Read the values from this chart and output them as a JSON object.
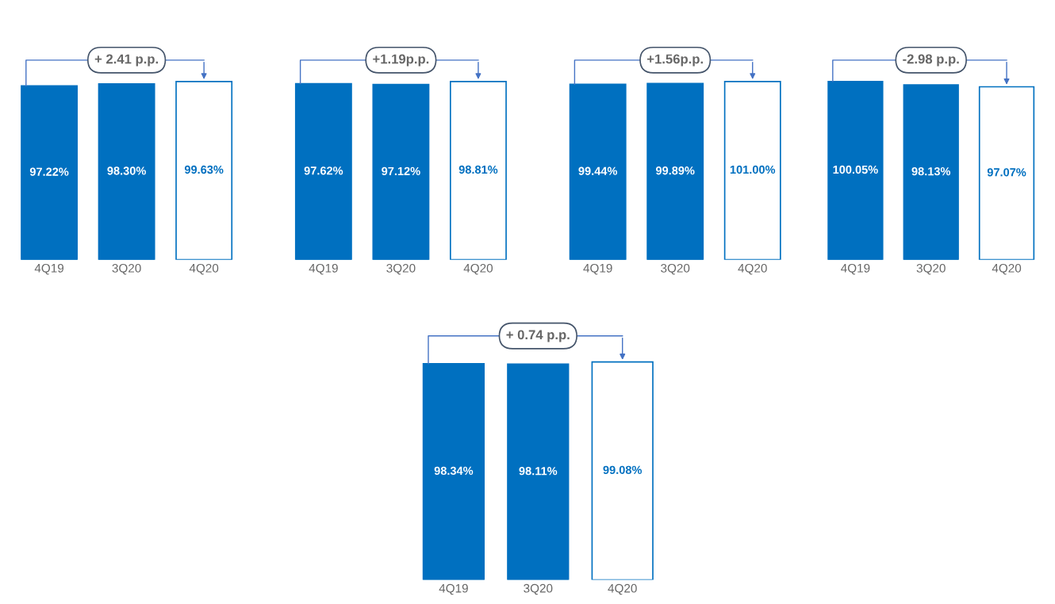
{
  "chart_data": [
    {
      "type": "bar",
      "categories": [
        "4Q19",
        "3Q20",
        "4Q20"
      ],
      "values": [
        97.22,
        98.3,
        99.63
      ],
      "value_labels": [
        "97.22%",
        "98.30%",
        "99.63%"
      ],
      "color": "#0070c0",
      "colors": [
        "#0070c0",
        "#0070c0",
        "#ffffff"
      ],
      "annotations": [
        "+ 2.41 p.p."
      ],
      "tick_labels": "x"
    },
    {
      "type": "bar",
      "categories": [
        "4Q19",
        "3Q20",
        "4Q20"
      ],
      "values": [
        97.62,
        97.12,
        98.81
      ],
      "value_labels": [
        "97.62%",
        "97.12%",
        "98.81%"
      ],
      "color": "#0070c0",
      "colors": [
        "#0070c0",
        "#0070c0",
        "#ffffff"
      ],
      "annotations": [
        "+1.19p.p."
      ],
      "tick_labels": "x"
    },
    {
      "type": "bar",
      "categories": [
        "4Q19",
        "3Q20",
        "4Q20"
      ],
      "values": [
        99.44,
        99.89,
        101.0
      ],
      "value_labels": [
        "99.44%",
        "99.89%",
        "101.00%"
      ],
      "color": "#0070c0",
      "colors": [
        "#0070c0",
        "#0070c0",
        "#ffffff"
      ],
      "annotations": [
        "+1.56p.p."
      ],
      "tick_labels": "x"
    },
    {
      "type": "bar",
      "categories": [
        "4Q19",
        "3Q20",
        "4Q20"
      ],
      "values": [
        100.05,
        98.13,
        97.07
      ],
      "value_labels": [
        "100.05%",
        "98.13%",
        "97.07%"
      ],
      "color": "#0070c0",
      "colors": [
        "#0070c0",
        "#0070c0",
        "#ffffff"
      ],
      "annotations": [
        "-2.98 p.p."
      ],
      "tick_labels": "x"
    },
    {
      "type": "bar",
      "categories": [
        "4Q19",
        "3Q20",
        "4Q20"
      ],
      "values": [
        98.34,
        98.11,
        99.08
      ],
      "value_labels": [
        "98.34%",
        "98.11%",
        "99.08%"
      ],
      "color": "#0070c0",
      "colors": [
        "#0070c0",
        "#0070c0",
        "#ffffff"
      ],
      "annotations": [
        "+ 0.74 p.p."
      ],
      "tick_labels": "x"
    }
  ]
}
